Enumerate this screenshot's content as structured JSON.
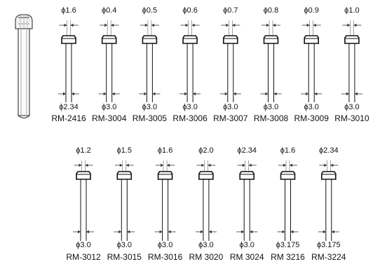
{
  "rows": [
    {
      "items": [
        {
          "model": "RM-2416",
          "tip": "1.6",
          "shank": "2.34"
        },
        {
          "model": "RM-3004",
          "tip": "0.4",
          "shank": "3.0"
        },
        {
          "model": "RM-3005",
          "tip": "0.5",
          "shank": "3.0"
        },
        {
          "model": "RM-3006",
          "tip": "0.6",
          "shank": "3.0"
        },
        {
          "model": "RM-3007",
          "tip": "0.7",
          "shank": "3.0"
        },
        {
          "model": "RM-3008",
          "tip": "0.8",
          "shank": "3.0"
        },
        {
          "model": "RM-3009",
          "tip": "0.9",
          "shank": "3.0"
        },
        {
          "model": "RM-3010",
          "tip": "1.0",
          "shank": "3.0"
        }
      ]
    },
    {
      "items": [
        {
          "model": "RM-3012",
          "tip": "1.2",
          "shank": "3.0"
        },
        {
          "model": "RM-3015",
          "tip": "1.5",
          "shank": "3.0"
        },
        {
          "model": "RM-3016",
          "tip": "1.6",
          "shank": "3.0"
        },
        {
          "model": "RM 3020",
          "tip": "2.0",
          "shank": "3.0"
        },
        {
          "model": "RM 3024",
          "tip": "2.34",
          "shank": "3.0"
        },
        {
          "model": "RM 3216",
          "tip": "1.6",
          "shank": "3.175"
        },
        {
          "model": "RM-3224",
          "tip": "2.34",
          "shank": "3.175"
        }
      ]
    }
  ],
  "phi_symbol": "ϕ",
  "icons": {
    "overview": "screw-pin-icon",
    "nozzle": "nozzle-pin-icon",
    "dimension": "dimension-arrows-icon"
  }
}
